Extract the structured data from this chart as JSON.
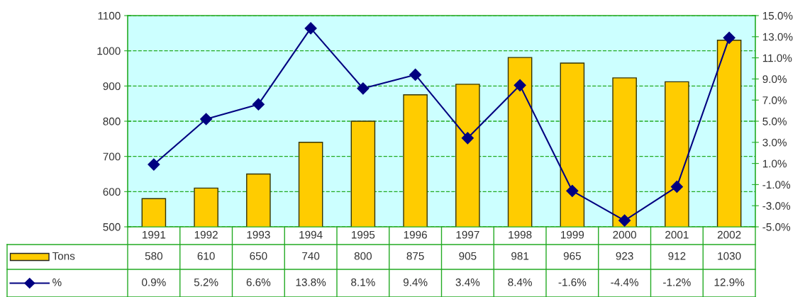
{
  "chart_data": {
    "type": "bar",
    "categories": [
      "1991",
      "1992",
      "1993",
      "1994",
      "1995",
      "1996",
      "1997",
      "1998",
      "1999",
      "2000",
      "2001",
      "2002"
    ],
    "series": [
      {
        "name": "Tons",
        "color": "#ffcc00",
        "values": [
          580,
          610,
          650,
          740,
          800,
          875,
          905,
          981,
          965,
          923,
          912,
          1030
        ],
        "value_labels": [
          "580",
          "610",
          "650",
          "740",
          "800",
          "875",
          "905",
          "981",
          "965",
          "923",
          "912",
          "1030"
        ]
      },
      {
        "name": "%",
        "type": "line",
        "axis": "y2",
        "color": "#000080",
        "marker": "diamond",
        "line_style": "solid",
        "values": [
          0.9,
          5.2,
          6.6,
          13.8,
          8.1,
          9.4,
          3.4,
          8.4,
          -1.6,
          -4.4,
          -1.2,
          12.9
        ],
        "value_labels": [
          "0.9%",
          "5.2%",
          "6.6%",
          "13.8%",
          "8.1%",
          "9.4%",
          "3.4%",
          "8.4%",
          "-1.6%",
          "-4.4%",
          "-1.2%",
          "12.9%"
        ]
      }
    ],
    "ylim": [
      500,
      1100
    ],
    "yticks": [
      500,
      600,
      700,
      800,
      900,
      1000,
      1100
    ],
    "y2lim": [
      -5,
      15
    ],
    "y2ticks": [
      {
        "value": -5,
        "label": "-5.0%"
      },
      {
        "value": -3,
        "label": "-3.0%"
      },
      {
        "value": -1,
        "label": "-1.0%"
      },
      {
        "value": 1,
        "label": "1.0%"
      },
      {
        "value": 3,
        "label": "3.0%"
      },
      {
        "value": 5,
        "label": "5.0%"
      },
      {
        "value": 7,
        "label": "7.0%"
      },
      {
        "value": 9,
        "label": "9.0%"
      },
      {
        "value": 11,
        "label": "11.0%"
      },
      {
        "value": 13,
        "label": "13.0%"
      },
      {
        "value": 15,
        "label": "15.0%"
      }
    ],
    "grid": "y",
    "legend": "bottom left"
  }
}
